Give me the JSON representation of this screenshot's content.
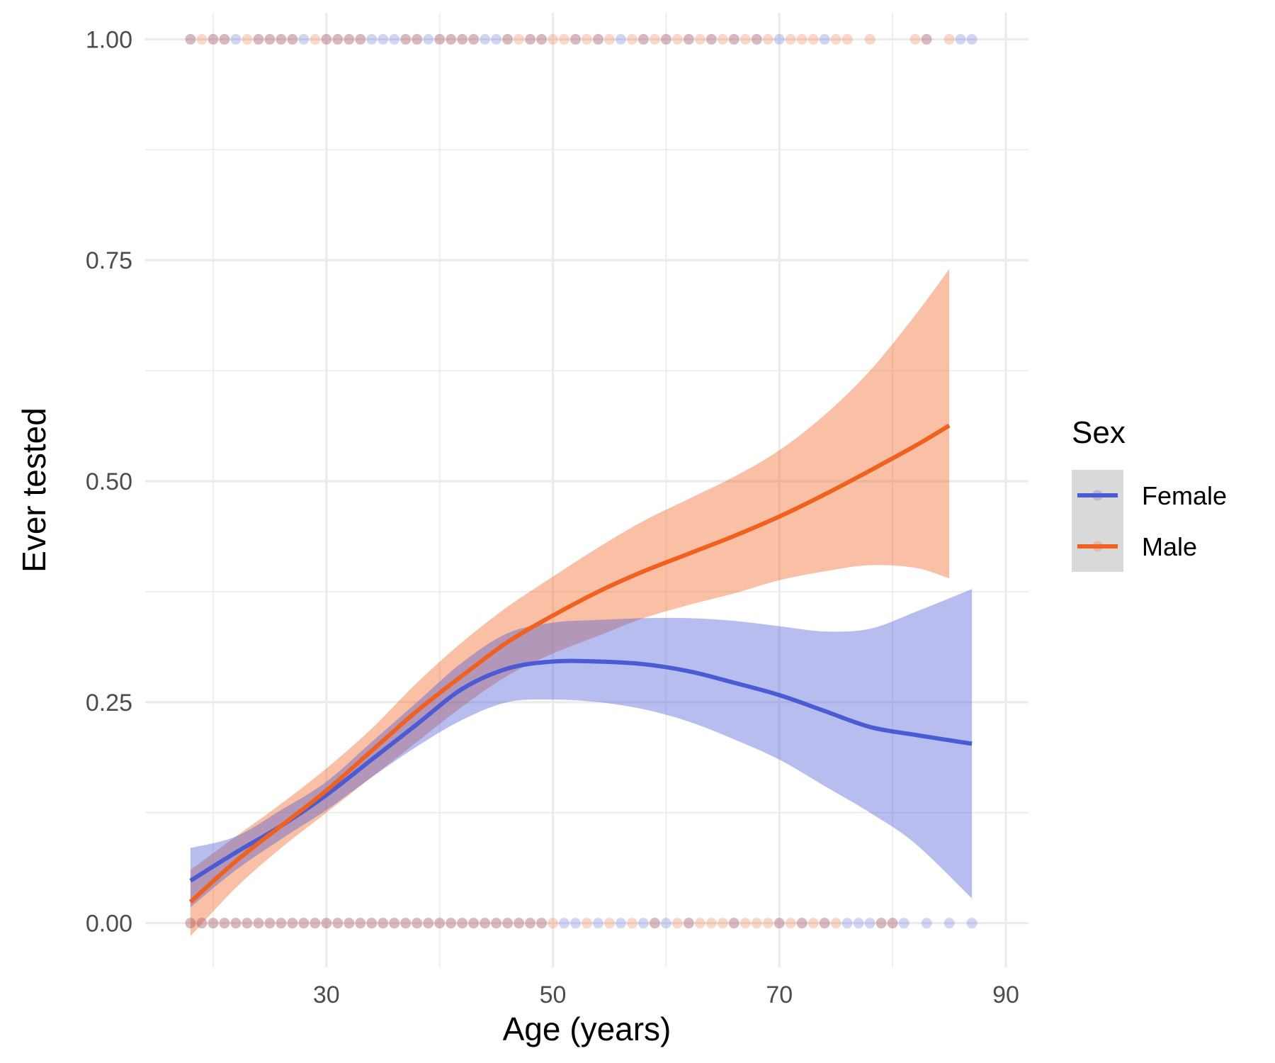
{
  "chart_data": {
    "type": "scatter",
    "title": "",
    "xlabel": "Age (years)",
    "ylabel": "Ever tested",
    "xlim": [
      14,
      92
    ],
    "ylim": [
      -0.05,
      1.03
    ],
    "x_ticks": [
      30,
      50,
      70,
      90
    ],
    "x_tick_labels": [
      "30",
      "50",
      "70",
      "90"
    ],
    "x_minor_ticks": [
      20,
      40,
      60,
      80
    ],
    "y_ticks": [
      0,
      0.25,
      0.5,
      0.75,
      1.0
    ],
    "y_tick_labels": [
      "0.00",
      "0.25",
      "0.50",
      "0.75",
      "1.00"
    ],
    "y_minor_ticks": [
      0.125,
      0.375,
      0.625,
      0.875
    ],
    "grid": true,
    "legend": {
      "title": "Sex",
      "position": "right"
    },
    "series": [
      {
        "name": "Female",
        "color": "#4a5bd4",
        "smooth": {
          "x": [
            18,
            22,
            26,
            30,
            34,
            38,
            42,
            46,
            50,
            54,
            58,
            62,
            66,
            70,
            74,
            78,
            82,
            87
          ],
          "y": [
            0.048,
            0.08,
            0.11,
            0.145,
            0.185,
            0.225,
            0.265,
            0.288,
            0.296,
            0.296,
            0.293,
            0.285,
            0.272,
            0.258,
            0.24,
            0.222,
            0.213,
            0.203
          ],
          "lower": [
            0.018,
            0.06,
            0.095,
            0.128,
            0.165,
            0.2,
            0.23,
            0.25,
            0.253,
            0.25,
            0.242,
            0.228,
            0.208,
            0.185,
            0.155,
            0.125,
            0.09,
            0.028
          ],
          "upper": [
            0.085,
            0.098,
            0.128,
            0.16,
            0.205,
            0.25,
            0.295,
            0.328,
            0.34,
            0.343,
            0.345,
            0.345,
            0.342,
            0.336,
            0.33,
            0.333,
            0.352,
            0.378
          ]
        },
        "points_y1_x": [
          18,
          20,
          21,
          22,
          24,
          25,
          26,
          27,
          28,
          30,
          31,
          32,
          33,
          34,
          35,
          36,
          37,
          38,
          39,
          40,
          41,
          42,
          43,
          44,
          45,
          46,
          48,
          49,
          52,
          54,
          56,
          58,
          60,
          62,
          64,
          66,
          68,
          70,
          74,
          83,
          86,
          87
        ],
        "points_y0_x": [
          18,
          19,
          20,
          21,
          22,
          23,
          24,
          25,
          26,
          27,
          28,
          29,
          30,
          31,
          32,
          33,
          34,
          35,
          36,
          37,
          38,
          39,
          40,
          41,
          42,
          43,
          44,
          45,
          46,
          47,
          48,
          49,
          51,
          52,
          54,
          56,
          58,
          59,
          60,
          62,
          66,
          70,
          72,
          74,
          76,
          77,
          78,
          79,
          80,
          81,
          83,
          85,
          87
        ]
      },
      {
        "name": "Male",
        "color": "#f0611e",
        "smooth": {
          "x": [
            18,
            22,
            26,
            30,
            34,
            38,
            42,
            46,
            50,
            54,
            58,
            62,
            66,
            70,
            74,
            78,
            82,
            85
          ],
          "y": [
            0.024,
            0.07,
            0.11,
            0.15,
            0.195,
            0.24,
            0.28,
            0.318,
            0.348,
            0.375,
            0.398,
            0.418,
            0.438,
            0.46,
            0.485,
            0.512,
            0.54,
            0.563
          ],
          "lower": [
            -0.015,
            0.04,
            0.085,
            0.125,
            0.165,
            0.205,
            0.245,
            0.28,
            0.305,
            0.325,
            0.345,
            0.36,
            0.373,
            0.388,
            0.398,
            0.405,
            0.402,
            0.39
          ],
          "upper": [
            0.06,
            0.098,
            0.135,
            0.175,
            0.22,
            0.272,
            0.318,
            0.358,
            0.392,
            0.425,
            0.455,
            0.48,
            0.505,
            0.535,
            0.575,
            0.625,
            0.688,
            0.74
          ]
        },
        "points_y1_x": [
          18,
          19,
          20,
          21,
          23,
          24,
          25,
          26,
          27,
          29,
          30,
          31,
          32,
          33,
          37,
          38,
          40,
          41,
          42,
          43,
          46,
          47,
          48,
          49,
          50,
          51,
          52,
          53,
          54,
          55,
          57,
          58,
          59,
          60,
          61,
          62,
          63,
          64,
          65,
          66,
          67,
          68,
          69,
          71,
          72,
          73,
          75,
          76,
          78,
          82,
          83,
          85
        ],
        "points_y0_x": [
          18,
          19,
          20,
          21,
          22,
          23,
          24,
          25,
          26,
          27,
          28,
          29,
          30,
          31,
          32,
          33,
          34,
          35,
          36,
          37,
          38,
          39,
          40,
          41,
          42,
          43,
          44,
          45,
          46,
          47,
          48,
          49,
          50,
          53,
          55,
          57,
          59,
          61,
          62,
          63,
          64,
          65,
          66,
          67,
          68,
          69,
          70,
          71,
          72,
          73,
          74,
          75,
          79,
          80
        ]
      }
    ]
  }
}
